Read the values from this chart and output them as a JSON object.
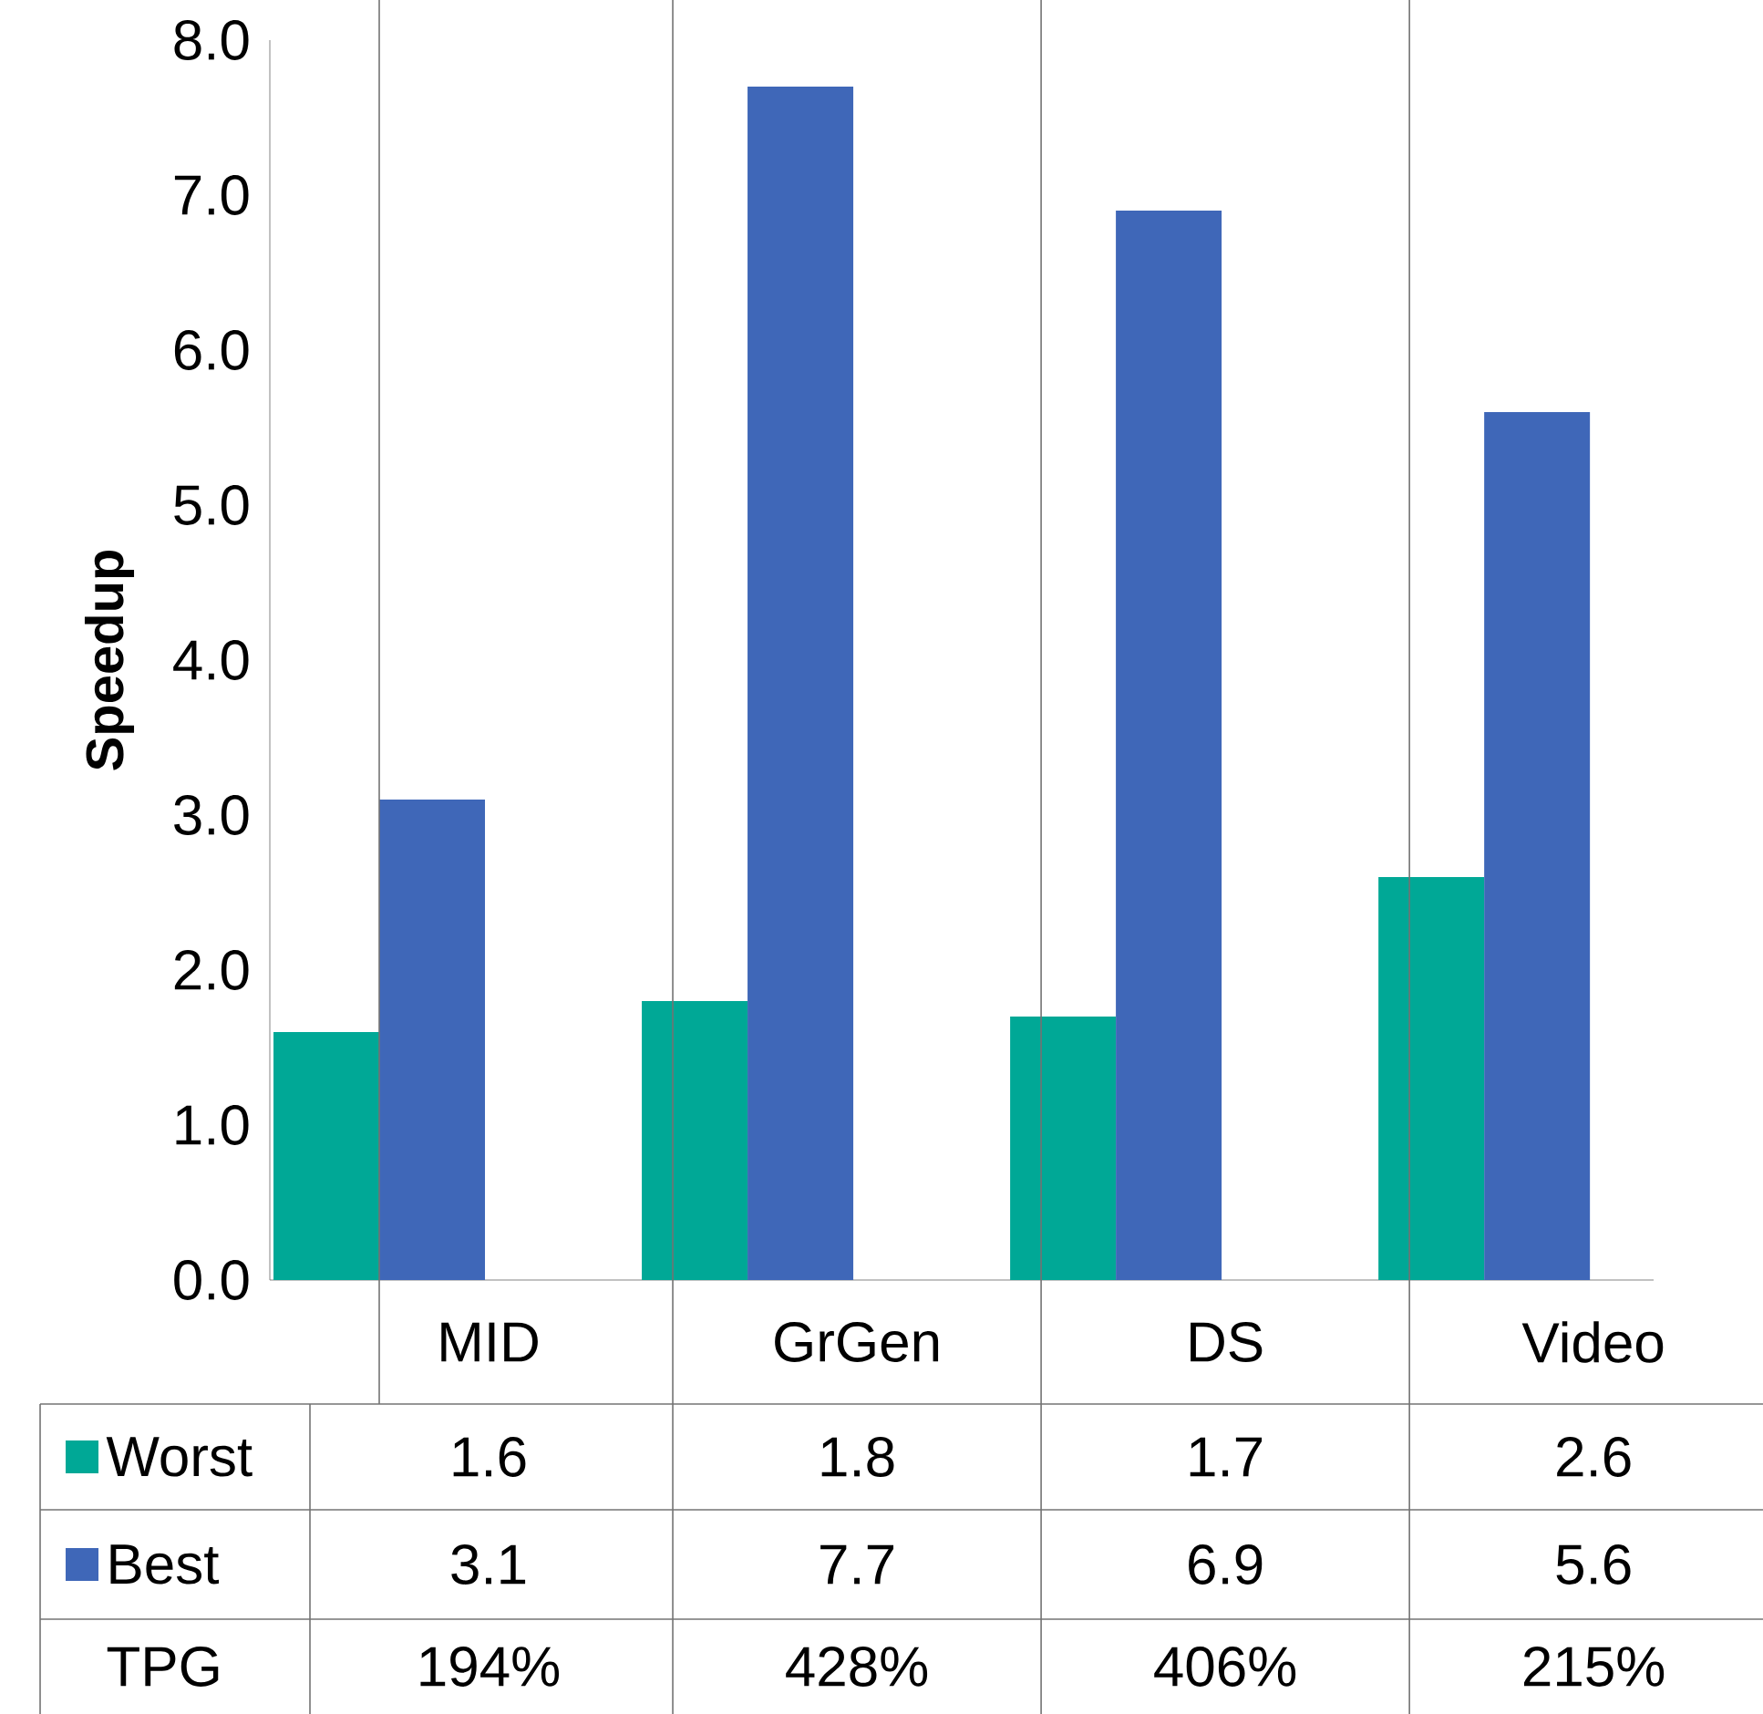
{
  "chart_data": {
    "type": "bar",
    "ylabel": "Speedup",
    "categories": [
      "MID",
      "GrGen",
      "DS",
      "Video"
    ],
    "series": [
      {
        "name": "Worst",
        "color": "#00a896",
        "values": [
          1.6,
          1.8,
          1.7,
          2.6
        ]
      },
      {
        "name": "Best",
        "color": "#3f67b8",
        "values": [
          3.1,
          7.7,
          6.9,
          5.6
        ]
      }
    ],
    "ylim": [
      0,
      8
    ],
    "yticks": [
      {
        "value": 0,
        "label": "0.0"
      },
      {
        "value": 1,
        "label": "1.0"
      },
      {
        "value": 2,
        "label": "2.0"
      },
      {
        "value": 3,
        "label": "3.0"
      },
      {
        "value": 4,
        "label": "4.0"
      },
      {
        "value": 5,
        "label": "5.0"
      },
      {
        "value": 6,
        "label": "6.0"
      },
      {
        "value": 7,
        "label": "7.0"
      },
      {
        "value": 8,
        "label": "8.0"
      }
    ],
    "data_labels": true,
    "legend": "bottom left",
    "annotations": [
      "TPG",
      "194%",
      "428%",
      "406%",
      "215%"
    ]
  }
}
